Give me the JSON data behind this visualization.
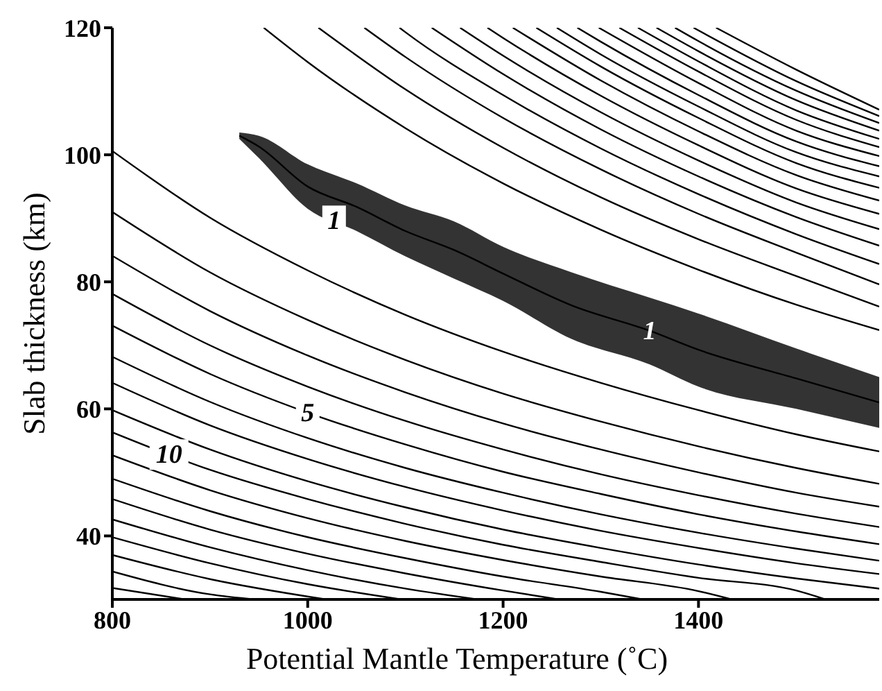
{
  "chart_data": {
    "type": "line",
    "xlabel": "Potential Mantle Temperature (˚C)",
    "ylabel": "Slab thickness (km)",
    "xlim": [
      800,
      1585
    ],
    "xticks": [
      800,
      1000,
      1200,
      1400
    ],
    "ylim": [
      30,
      120
    ],
    "yticks": [
      40,
      60,
      80,
      100,
      120
    ],
    "grid": false,
    "series": [
      {
        "color": "#000000",
        "x": [
          930,
          950,
          1000,
          1050,
          1100,
          1150,
          1200,
          1270,
          1350,
          1400,
          1500,
          1585
        ],
        "lower": [
          102.5,
          99.5,
          91.5,
          88,
          84,
          80.5,
          77,
          71,
          67,
          63.5,
          60,
          57
        ],
        "upper": [
          103.5,
          103,
          98.5,
          95.5,
          92,
          89.5,
          85.5,
          81.5,
          77.5,
          75,
          69.5,
          65
        ],
        "values": [
          103,
          101.3,
          95,
          91.8,
          88,
          85,
          81.3,
          76.3,
          72.3,
          69.3,
          64.8,
          61
        ]
      },
      {
        "color": "#000000",
        "x": [
          955,
          1000,
          1100,
          1200,
          1300,
          1400,
          1500,
          1585
        ],
        "values": [
          120,
          114.6,
          104.2,
          95.5,
          88.2,
          81.9,
          76.4,
          72.4
        ]
      },
      {
        "color": "#000000",
        "x": [
          1011,
          1100,
          1200,
          1300,
          1400,
          1500,
          1585
        ],
        "values": [
          120,
          110.3,
          101.1,
          93.3,
          86.7,
          80.9,
          76.1
        ]
      },
      {
        "color": "#000000",
        "x": [
          1058,
          1100,
          1200,
          1300,
          1400,
          1500,
          1585
        ],
        "values": [
          120,
          115.4,
          105.8,
          97.7,
          90.7,
          84.6,
          79.6
        ]
      },
      {
        "color": "#000000",
        "x": [
          1094,
          1100,
          1200,
          1300,
          1400,
          1500,
          1585
        ],
        "values": [
          120,
          119.3,
          109.4,
          101,
          93.8,
          87.5,
          82.8
        ]
      },
      {
        "color": "#000000",
        "x": [
          1127,
          1200,
          1300,
          1400,
          1500,
          1585
        ],
        "values": [
          120,
          112.7,
          104,
          96.6,
          90.2,
          85.7
        ]
      },
      {
        "color": "#000000",
        "x": [
          1156,
          1200,
          1300,
          1400,
          1500,
          1585
        ],
        "values": [
          120,
          115.6,
          106.7,
          99.1,
          92.5,
          88.3
        ]
      },
      {
        "color": "#000000",
        "x": [
          1184,
          1200,
          1300,
          1400,
          1500,
          1585
        ],
        "values": [
          120,
          118.4,
          109.3,
          101.5,
          94.7,
          90.7
        ]
      },
      {
        "color": "#000000",
        "x": [
          1210,
          1300,
          1400,
          1500,
          1585
        ],
        "values": [
          120,
          111.7,
          103.7,
          96.8,
          92.8
        ]
      },
      {
        "color": "#000000",
        "x": [
          1234,
          1300,
          1400,
          1500,
          1585
        ],
        "values": [
          120,
          113.9,
          105.8,
          98.7,
          94.8
        ]
      },
      {
        "color": "#000000",
        "x": [
          1255,
          1300,
          1400,
          1500,
          1585
        ],
        "values": [
          120,
          115.8,
          107.6,
          100.4,
          96.6
        ]
      },
      {
        "color": "#000000",
        "x": [
          1276,
          1300,
          1400,
          1500,
          1585
        ],
        "values": [
          120,
          117.8,
          109.4,
          102.1,
          98.2
        ]
      },
      {
        "color": "#000000",
        "x": [
          1298,
          1400,
          1500,
          1585
        ],
        "values": [
          120,
          111.3,
          103.8,
          99.8
        ]
      },
      {
        "color": "#000000",
        "x": [
          1319,
          1400,
          1500,
          1585
        ],
        "values": [
          120,
          113.1,
          105.5,
          101.2
        ]
      },
      {
        "color": "#000000",
        "x": [
          1338,
          1400,
          1500,
          1585
        ],
        "values": [
          120,
          114.7,
          107,
          102.5
        ]
      },
      {
        "color": "#000000",
        "x": [
          1357,
          1400,
          1500,
          1585
        ],
        "values": [
          120,
          116.3,
          108.6,
          103.8
        ]
      },
      {
        "color": "#000000",
        "x": [
          1376,
          1400,
          1500,
          1585
        ],
        "values": [
          120,
          117.9,
          110.1,
          105
        ]
      },
      {
        "color": "#000000",
        "x": [
          1395,
          1500,
          1585
        ],
        "values": [
          120,
          111.6,
          106.1
        ]
      },
      {
        "color": "#000000",
        "x": [
          1418,
          1500,
          1585
        ],
        "values": [
          120,
          113.4,
          107.1
        ]
      },
      {
        "color": "#000000",
        "x": [
          800,
          900,
          1000,
          1100,
          1200,
          1300,
          1400,
          1500,
          1585
        ],
        "values": [
          100.6,
          90.1,
          81.8,
          74.8,
          69,
          64.1,
          59.8,
          56,
          53.3
        ]
      },
      {
        "color": "#000000",
        "x": [
          800,
          900,
          1000,
          1100,
          1200,
          1300,
          1400,
          1500,
          1585
        ],
        "values": [
          91,
          81.5,
          74,
          67.7,
          62.4,
          58,
          54.1,
          50.7,
          48.2
        ]
      },
      {
        "color": "#000000",
        "x": [
          800,
          900,
          1000,
          1100,
          1200,
          1300,
          1400,
          1500,
          1585
        ],
        "values": [
          84.1,
          75.4,
          68.4,
          62.6,
          57.7,
          53.6,
          50,
          46.8,
          44.6
        ]
      },
      {
        "color": "#000000",
        "x": [
          800,
          900,
          1000,
          1100,
          1200,
          1300,
          1400,
          1500,
          1585
        ],
        "values": [
          78.1,
          70,
          63.5,
          58.1,
          53.6,
          49.7,
          46.4,
          43.5,
          41.4
        ]
      },
      {
        "color": "#000000",
        "x": [
          800,
          900,
          1000,
          1100,
          1200,
          1300,
          1400,
          1500,
          1585
        ],
        "values": [
          73.1,
          65.5,
          59.4,
          54.4,
          50.1,
          46.6,
          43.4,
          40.7,
          38.7
        ]
      },
      {
        "color": "#000000",
        "x": [
          800,
          900,
          1000,
          1100,
          1200,
          1300,
          1400,
          1500,
          1585
        ],
        "values": [
          68.2,
          61.1,
          55.4,
          50.7,
          46.8,
          43.4,
          40.5,
          38,
          36.1
        ]
      },
      {
        "color": "#000000",
        "x": [
          800,
          900,
          1000,
          1100,
          1200,
          1300,
          1400,
          1500,
          1585
        ],
        "values": [
          64.1,
          57.4,
          52.1,
          47.7,
          44,
          40.8,
          38.1,
          35.7,
          34
        ]
      },
      {
        "color": "#000000",
        "x": [
          800,
          900,
          1000,
          1100,
          1200,
          1300,
          1400,
          1500,
          1585
        ],
        "values": [
          59.8,
          53.6,
          48.6,
          44.5,
          41,
          38.1,
          35.5,
          33.3,
          31.7
        ]
      },
      {
        "color": "#000000",
        "x": [
          800,
          900,
          1000,
          1100,
          1200,
          1300,
          1400,
          1500,
          1530
        ],
        "values": [
          56.3,
          50.4,
          45.8,
          41.9,
          38.6,
          35.9,
          33.4,
          31.4,
          30
        ]
      },
      {
        "color": "#000000",
        "x": [
          800,
          900,
          1000,
          1100,
          1200,
          1300,
          1400,
          1434
        ],
        "values": [
          52.7,
          47.2,
          42.8,
          39.2,
          36.2,
          33.6,
          31.3,
          30
        ]
      },
      {
        "color": "#000000",
        "x": [
          800,
          900,
          1000,
          1100,
          1200,
          1300,
          1343
        ],
        "values": [
          49,
          43.9,
          39.8,
          36.5,
          33.6,
          31.2,
          30
        ]
      },
      {
        "color": "#000000",
        "x": [
          800,
          900,
          1000,
          1100,
          1200,
          1257
        ],
        "values": [
          45.8,
          41,
          37.2,
          34.1,
          31.4,
          30
        ]
      },
      {
        "color": "#000000",
        "x": [
          800,
          900,
          1000,
          1100,
          1174
        ],
        "values": [
          42.6,
          38.2,
          34.6,
          31.7,
          30
        ]
      },
      {
        "color": "#000000",
        "x": [
          800,
          900,
          1000,
          1096
        ],
        "values": [
          39.8,
          35.7,
          32.4,
          30
        ]
      },
      {
        "color": "#000000",
        "x": [
          800,
          900,
          1019
        ],
        "values": [
          37,
          33.2,
          30
        ]
      },
      {
        "color": "#000000",
        "x": [
          800,
          900,
          946
        ],
        "values": [
          34.4,
          30.8,
          30
        ]
      },
      {
        "color": "#000000",
        "x": [
          800,
          875
        ],
        "values": [
          31.8,
          30
        ]
      }
    ],
    "annotations": [
      {
        "text": "1",
        "x": 1027,
        "y": 89.6
      },
      {
        "text": "1",
        "x": 1350,
        "y": 72.3
      },
      {
        "text": "5",
        "x": 1000,
        "y": 59.4
      },
      {
        "text": "10",
        "x": 858,
        "y": 52.8
      }
    ]
  }
}
